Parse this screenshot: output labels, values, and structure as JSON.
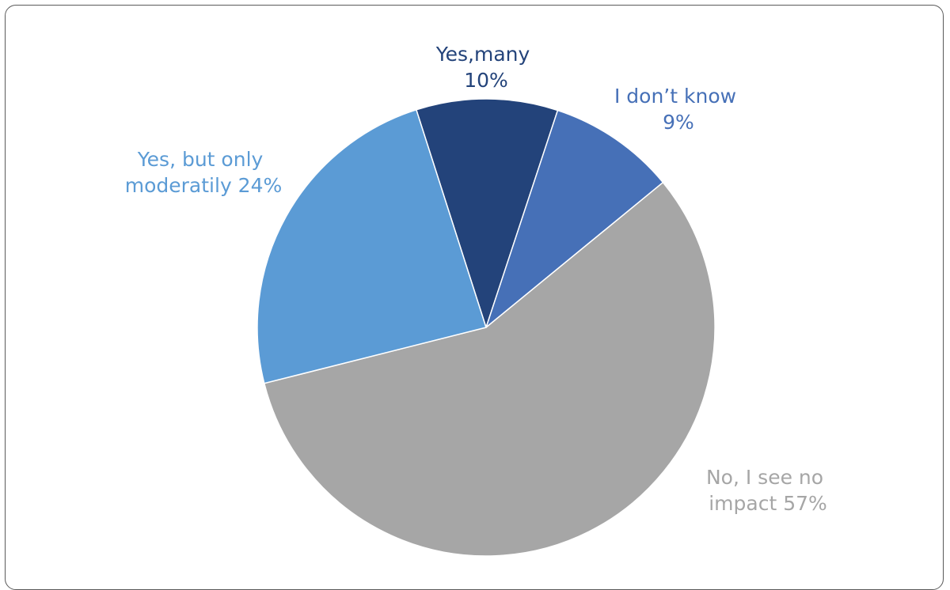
{
  "chart_data": {
    "type": "pie",
    "title": "",
    "slices": [
      {
        "label_line1": "Yes,many",
        "label_line2": "10%",
        "label": "Yes,many",
        "value": 10,
        "color": "#23437a"
      },
      {
        "label_line1": "I don’t know",
        "label_line2": "9%",
        "label": "I don’t know",
        "value": 9,
        "color": "#4670b7"
      },
      {
        "label_line1": "No, I see no",
        "label_line2": "impact 57%",
        "label": "No, I see no impact",
        "value": 57,
        "color": "#a6a6a6"
      },
      {
        "label_line1": "Yes, but only",
        "label_line2": "moderatily 24%",
        "label": "Yes, but only moderatily",
        "value": 24,
        "color": "#5b9bd5"
      }
    ],
    "label_colors": {
      "dark": "#23437a",
      "mid": "#4670b7",
      "grey": "#a6a6a6",
      "light": "#5b9bd5"
    }
  }
}
